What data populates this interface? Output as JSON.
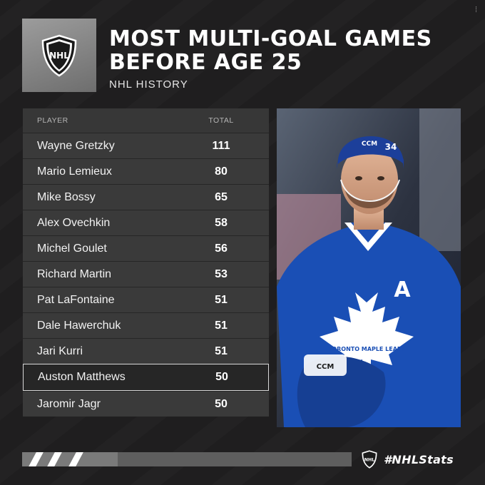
{
  "corner_mark": "⁞",
  "header": {
    "title_line1": "MOST MULTI-GOAL GAMES",
    "title_line2": "BEFORE AGE 25",
    "subtitle": "NHL HISTORY",
    "logo_text": "NHL"
  },
  "table": {
    "columns": [
      "PLAYER",
      "TOTAL"
    ],
    "rows": [
      {
        "player": "Wayne Gretzky",
        "total": "111"
      },
      {
        "player": "Mario Lemieux",
        "total": "80"
      },
      {
        "player": "Mike Bossy",
        "total": "65"
      },
      {
        "player": "Alex Ovechkin",
        "total": "58"
      },
      {
        "player": "Michel Goulet",
        "total": "56"
      },
      {
        "player": "Richard Martin",
        "total": "53"
      },
      {
        "player": "Pat LaFontaine",
        "total": "51"
      },
      {
        "player": "Dale Hawerchuk",
        "total": "51"
      },
      {
        "player": "Jari Kurri",
        "total": "51"
      },
      {
        "player": "Auston Matthews",
        "total": "50"
      },
      {
        "player": "Jaromir Jagr",
        "total": "50"
      }
    ],
    "highlight_index": 9
  },
  "photo": {
    "jersey_number": "34",
    "captain_letter": "A",
    "helmet_brand": "CCM",
    "crest_text": "TORONTO MAPLE LEAFS",
    "jersey_color": "#1a4fb5",
    "helmet_color": "#1c3f9a"
  },
  "footer": {
    "hashtag": "#NHLStats",
    "logo_text": "NHL"
  }
}
